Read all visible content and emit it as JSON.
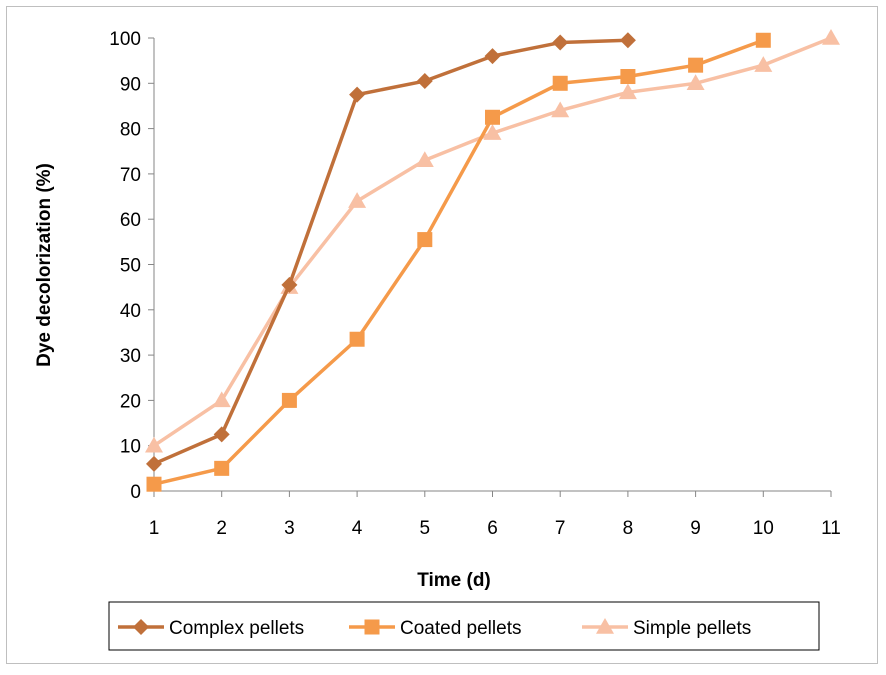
{
  "chart_data": {
    "type": "line",
    "title": "",
    "xlabel": "Time (d)",
    "ylabel": "Dye decolorization (%)",
    "x": [
      1,
      2,
      3,
      4,
      5,
      6,
      7,
      8,
      9,
      10,
      11
    ],
    "x_tick_labels": [
      "1",
      "2",
      "3",
      "4",
      "5",
      "6",
      "7",
      "8",
      "9",
      "10",
      "11"
    ],
    "y_tick_labels": [
      "0",
      "10",
      "20",
      "30",
      "40",
      "50",
      "60",
      "70",
      "80",
      "90",
      "100"
    ],
    "ylim": [
      0,
      100
    ],
    "grid": false,
    "legend_position": "bottom",
    "series": [
      {
        "name": "Complex pellets",
        "marker": "diamond",
        "color": "#c0703a",
        "x": [
          1,
          2,
          3,
          4,
          5,
          6,
          7,
          8
        ],
        "values": [
          6,
          12.5,
          45.5,
          87.5,
          90.5,
          96,
          99,
          99.5
        ]
      },
      {
        "name": "Coated pellets",
        "marker": "square",
        "color": "#f59a4a",
        "x": [
          1,
          2,
          3,
          4,
          5,
          6,
          7,
          8,
          9,
          10
        ],
        "values": [
          1.5,
          5,
          20,
          33.5,
          55.5,
          82.5,
          90,
          91.5,
          94,
          99.5
        ]
      },
      {
        "name": "Simple pellets",
        "marker": "triangle",
        "color": "#f8c0a4",
        "x": [
          1,
          2,
          3,
          4,
          5,
          6,
          7,
          8,
          9,
          10,
          11
        ],
        "values": [
          10,
          20,
          45,
          64,
          73,
          79,
          84,
          88,
          90,
          94,
          100
        ]
      }
    ]
  }
}
